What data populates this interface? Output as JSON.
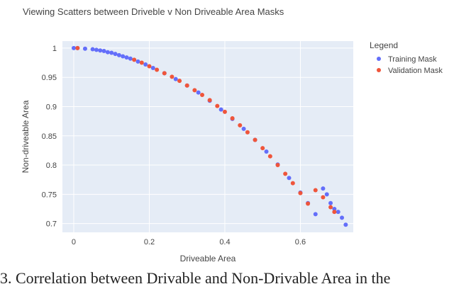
{
  "chart_data": {
    "type": "scatter",
    "title": "Viewing Scatters between Driveble v Non Driveable Area Masks",
    "xlabel": "Driveable Area",
    "ylabel": "Non-driveable Area",
    "xlim": [
      -0.03,
      0.74
    ],
    "ylim": [
      0.685,
      1.012
    ],
    "x_ticks": [
      0,
      0.2,
      0.4,
      0.6
    ],
    "x_tick_labels": [
      "0",
      "0.2",
      "0.4",
      "0.6"
    ],
    "y_ticks": [
      0.7,
      0.75,
      0.8,
      0.85,
      0.9,
      0.95,
      1
    ],
    "y_tick_labels": [
      "0.7",
      "0.75",
      "0.8",
      "0.85",
      "0.9",
      "0.95",
      "1"
    ],
    "grid": true,
    "legend": {
      "title": "Legend",
      "placement": "right"
    },
    "series": [
      {
        "name": "Training Mask",
        "color": "#636efa",
        "x": [
          0,
          0.01,
          0.03,
          0.05,
          0.06,
          0.07,
          0.08,
          0.09,
          0.1,
          0.11,
          0.12,
          0.13,
          0.14,
          0.15,
          0.17,
          0.19,
          0.21,
          0.24,
          0.27,
          0.3,
          0.33,
          0.36,
          0.39,
          0.42,
          0.45,
          0.48,
          0.51,
          0.54,
          0.57,
          0.6,
          0.62,
          0.64,
          0.66,
          0.67,
          0.68,
          0.69,
          0.7,
          0.71,
          0.72
        ],
        "y": [
          1.0,
          1.0,
          0.999,
          0.998,
          0.997,
          0.996,
          0.995,
          0.993,
          0.992,
          0.99,
          0.988,
          0.986,
          0.984,
          0.982,
          0.977,
          0.972,
          0.966,
          0.957,
          0.947,
          0.936,
          0.924,
          0.91,
          0.895,
          0.879,
          0.862,
          0.843,
          0.823,
          0.801,
          0.778,
          0.753,
          0.735,
          0.716,
          0.76,
          0.75,
          0.735,
          0.725,
          0.72,
          0.71,
          0.698
        ]
      },
      {
        "name": "Validation Mask",
        "color": "#ef553b",
        "x": [
          0.01,
          0.16,
          0.18,
          0.2,
          0.22,
          0.24,
          0.26,
          0.28,
          0.3,
          0.32,
          0.34,
          0.36,
          0.38,
          0.4,
          0.42,
          0.44,
          0.46,
          0.48,
          0.5,
          0.52,
          0.54,
          0.56,
          0.58,
          0.6,
          0.62,
          0.64,
          0.66,
          0.68,
          0.69
        ],
        "y": [
          1.0,
          0.98,
          0.975,
          0.969,
          0.963,
          0.957,
          0.951,
          0.944,
          0.936,
          0.928,
          0.92,
          0.911,
          0.901,
          0.891,
          0.88,
          0.868,
          0.856,
          0.843,
          0.829,
          0.815,
          0.8,
          0.785,
          0.769,
          0.752,
          0.734,
          0.757,
          0.745,
          0.728,
          0.72
        ]
      }
    ]
  },
  "caption": "3. Correlation between Drivable and Non-Drivable Area in the"
}
